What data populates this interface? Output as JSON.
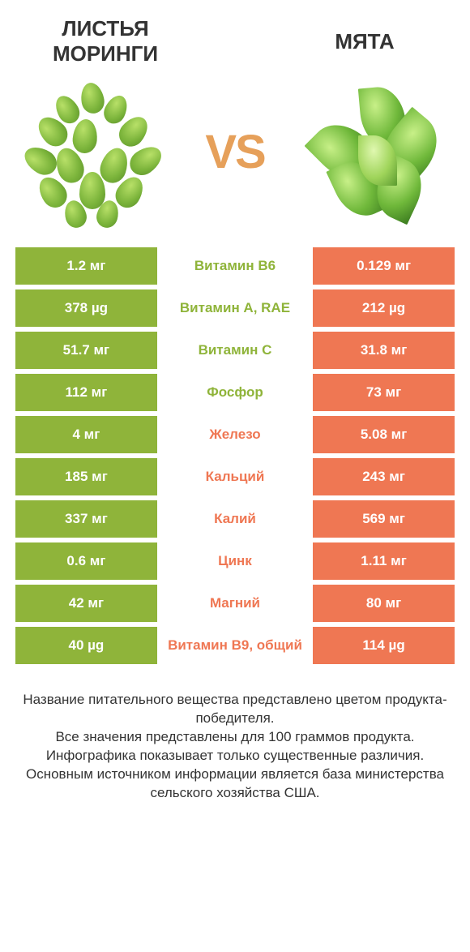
{
  "header": {
    "left_title": "ЛИСТЬЯ МОРИНГИ",
    "right_title": "МЯТА",
    "vs_text": "VS"
  },
  "colors": {
    "left_column": "#8fb43a",
    "right_column": "#ef7753",
    "mid_text_left_win": "#8fb43a",
    "mid_text_right_win": "#ef7753",
    "vs_text": "#e6a05a",
    "title_text": "#333333",
    "footnote_text": "#333333",
    "background": "#ffffff"
  },
  "table": {
    "type": "table",
    "rows": [
      {
        "left": "1.2 мг",
        "label": "Витамин B6",
        "right": "0.129 мг",
        "winner": "left"
      },
      {
        "left": "378 µg",
        "label": "Витамин A, RAE",
        "right": "212 µg",
        "winner": "left"
      },
      {
        "left": "51.7 мг",
        "label": "Витамин C",
        "right": "31.8 мг",
        "winner": "left"
      },
      {
        "left": "112 мг",
        "label": "Фосфор",
        "right": "73 мг",
        "winner": "left"
      },
      {
        "left": "4 мг",
        "label": "Железо",
        "right": "5.08 мг",
        "winner": "right"
      },
      {
        "left": "185 мг",
        "label": "Кальций",
        "right": "243 мг",
        "winner": "right"
      },
      {
        "left": "337 мг",
        "label": "Калий",
        "right": "569 мг",
        "winner": "right"
      },
      {
        "left": "0.6 мг",
        "label": "Цинк",
        "right": "1.11 мг",
        "winner": "right"
      },
      {
        "left": "42 мг",
        "label": "Магний",
        "right": "80 мг",
        "winner": "right"
      },
      {
        "left": "40 µg",
        "label": "Витамин B9, общий",
        "right": "114 µg",
        "winner": "right"
      }
    ]
  },
  "footnote": {
    "line1": "Название питательного вещества представлено цветом продукта-победителя.",
    "line2": "Все значения представлены для 100 граммов продукта.",
    "line3": "Инфографика показывает только существенные различия.",
    "line4": "Основным источником информации является база министерства сельского хозяйства США."
  },
  "typography": {
    "title_fontsize": 26,
    "vs_fontsize": 58,
    "cell_fontsize": 17,
    "footnote_fontsize": 17
  }
}
